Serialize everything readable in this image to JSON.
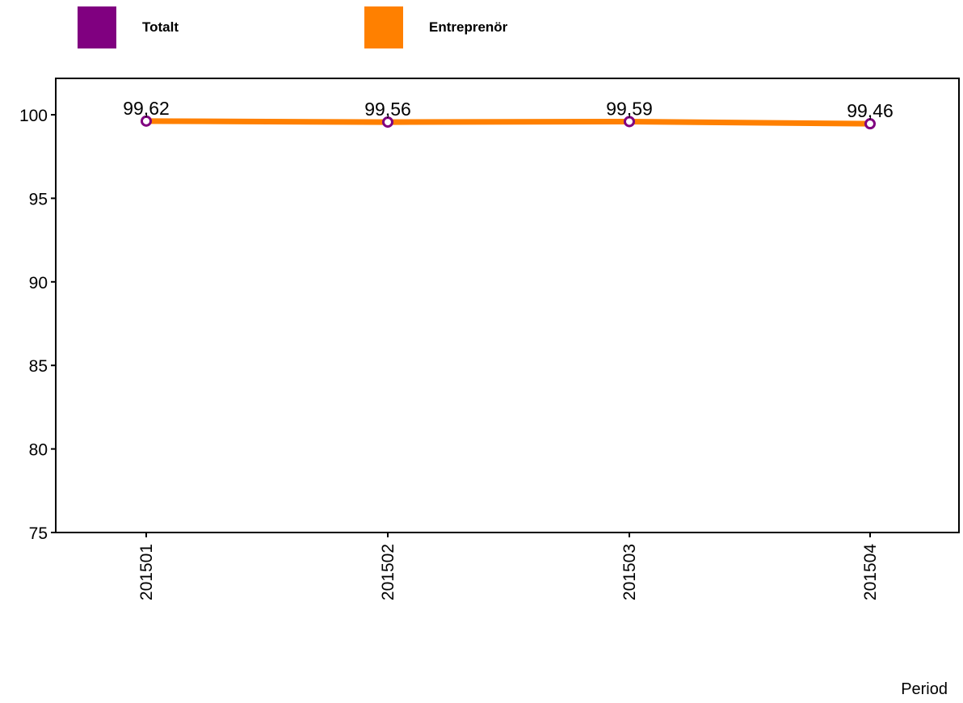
{
  "chart_data": {
    "type": "line",
    "categories": [
      "201501",
      "201502",
      "201503",
      "201504"
    ],
    "series": [
      {
        "name": "Totalt",
        "color": "#800080",
        "values": [
          99.62,
          99.56,
          99.59,
          99.46
        ]
      },
      {
        "name": "Entreprenör",
        "color": "#FF8000",
        "values": [
          99.62,
          99.56,
          99.59,
          99.46
        ]
      }
    ],
    "data_labels": [
      "99,62",
      "99,56",
      "99,59",
      "99,46"
    ],
    "y_ticks": [
      75,
      80,
      85,
      90,
      95,
      100
    ],
    "ylim": [
      75,
      102
    ],
    "xlabel": "Period",
    "ylabel": "",
    "legend_position": "top",
    "grid": false
  }
}
